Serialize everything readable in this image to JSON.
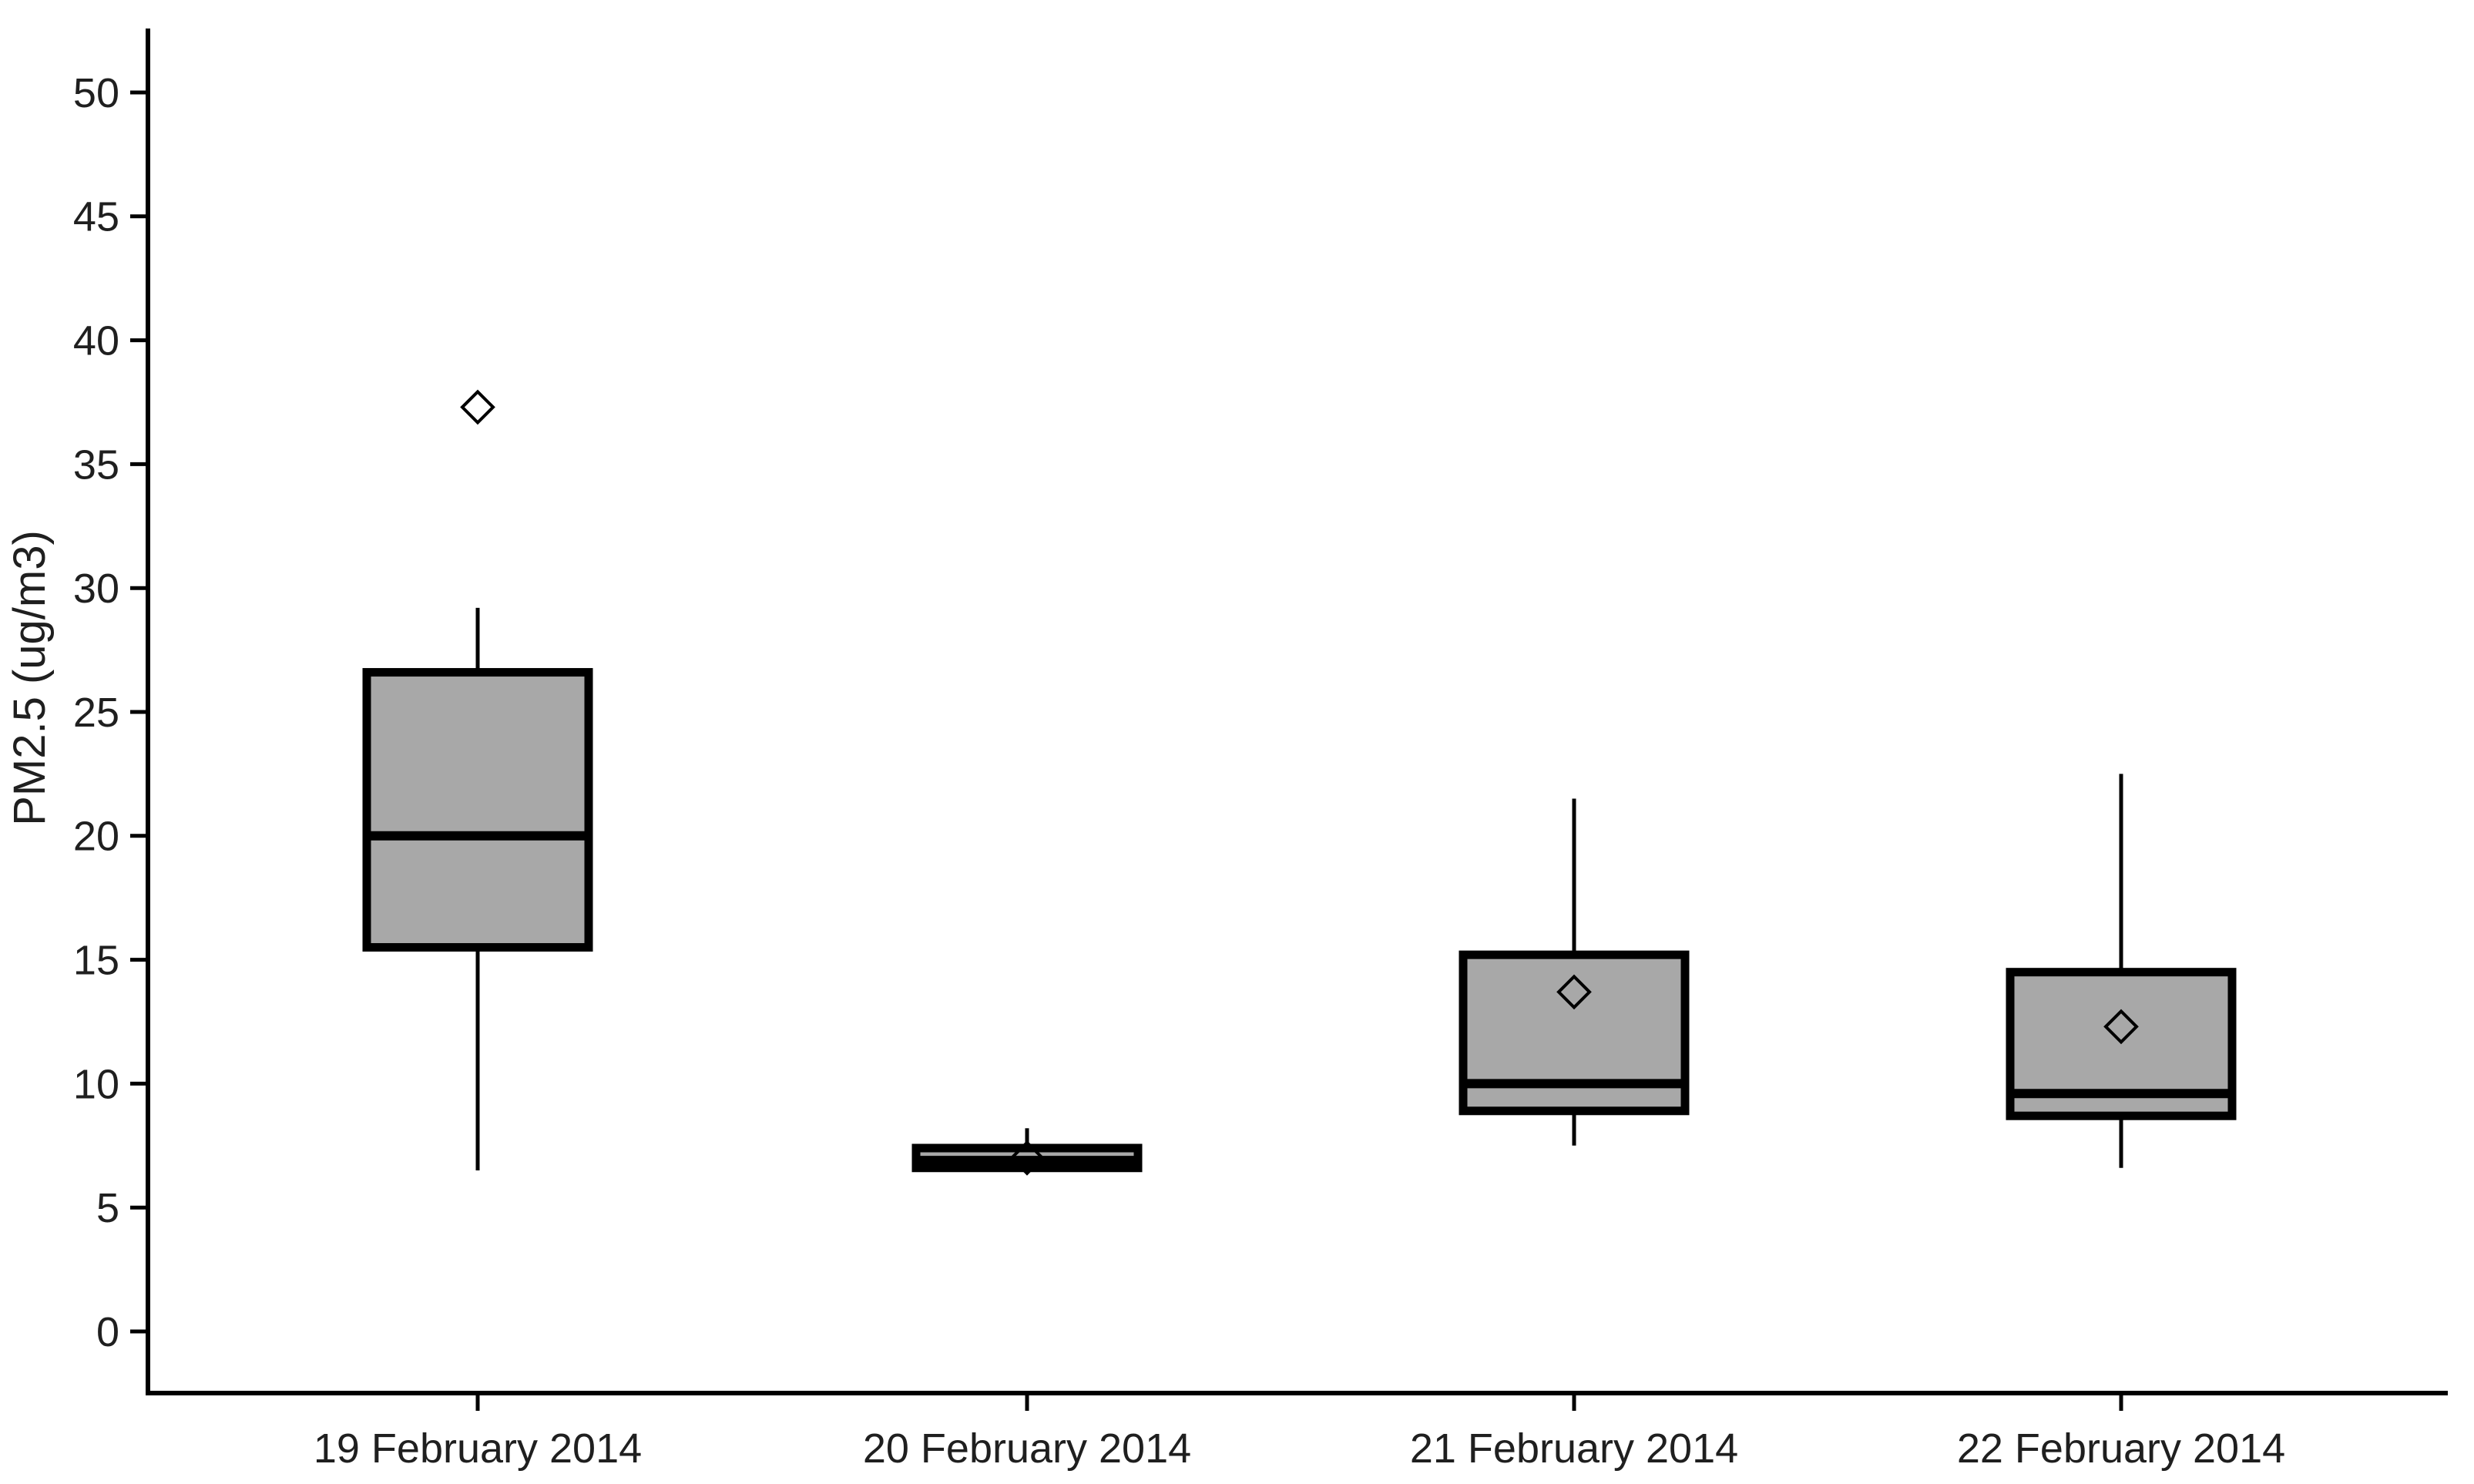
{
  "chart_data": {
    "type": "boxplot",
    "title": "",
    "xlabel": "",
    "ylabel": "PM2.5 (ug/m3)",
    "categories": [
      "19 February 2014",
      "20 February 2014",
      "21 February 2014",
      "22 February 2014"
    ],
    "y_ticks": [
      0,
      5,
      10,
      15,
      20,
      25,
      30,
      35,
      40,
      45,
      50
    ],
    "ylim": [
      -2.5,
      52.5
    ],
    "grid": false,
    "legend": false,
    "series": [
      {
        "category": "19 February 2014",
        "whisker_low": 6.5,
        "q1": 15.5,
        "median": 20.0,
        "q3": 26.6,
        "whisker_high": 29.2,
        "diamond": 37.3
      },
      {
        "category": "20 February 2014",
        "whisker_low": 6.6,
        "q1": 6.6,
        "median": 6.9,
        "q3": 7.4,
        "whisker_high": 8.2,
        "diamond": 7.0
      },
      {
        "category": "21 February 2014",
        "whisker_low": 7.5,
        "q1": 8.9,
        "median": 10.0,
        "q3": 15.2,
        "whisker_high": 21.5,
        "diamond": 13.7
      },
      {
        "category": "22 February 2014",
        "whisker_low": 6.6,
        "q1": 8.7,
        "median": 9.6,
        "q3": 14.5,
        "whisker_high": 22.5,
        "diamond": 12.3
      }
    ],
    "colors": {
      "box_fill": "#a8a8a8",
      "line": "#000000",
      "text": "#1f1f1f",
      "background": "#ffffff"
    }
  }
}
